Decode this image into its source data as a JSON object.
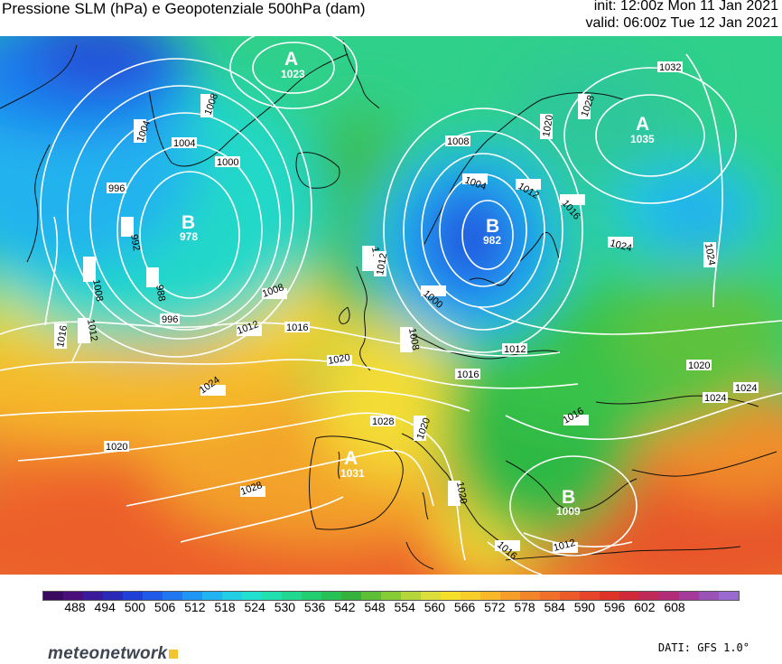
{
  "header": {
    "title": "Pressione SLM (hPa) e Geopotenziale 500hPa (dam)",
    "init": "init: 12:00z Mon 11 Jan 2021",
    "valid": "valid: 06:00z Tue 12 Jan 2021"
  },
  "map": {
    "pressure_centers": [
      {
        "letter": "A",
        "value": "1023"
      },
      {
        "letter": "A",
        "value": "1035"
      },
      {
        "letter": "B",
        "value": "978"
      },
      {
        "letter": "B",
        "value": "982"
      },
      {
        "letter": "A",
        "value": "1031"
      },
      {
        "letter": "B",
        "value": "1009"
      }
    ],
    "isobar_labels": [
      "1032",
      "1008",
      "1004",
      "1004",
      "1000",
      "996",
      "992",
      "988",
      "996",
      "1008",
      "1012",
      "1016",
      "1008",
      "1016",
      "1012",
      "1020",
      "1024",
      "1020",
      "1028",
      "1016",
      "1012",
      "1008",
      "1004",
      "1012",
      "1020",
      "1028",
      "1016",
      "1024",
      "1024",
      "1020",
      "1024",
      "1016",
      "1020",
      "1012",
      "1016",
      "1028",
      "1024",
      "1020",
      "1016",
      "1012",
      "1008",
      "1000",
      "1012"
    ]
  },
  "colorbar": {
    "ticks": [
      "488",
      "494",
      "500",
      "506",
      "512",
      "518",
      "524",
      "530",
      "536",
      "542",
      "548",
      "554",
      "560",
      "566",
      "572",
      "578",
      "584",
      "590",
      "596",
      "602",
      "608"
    ],
    "colors": [
      "#3a0a5e",
      "#4a0f7a",
      "#3a1a9a",
      "#2a2ab8",
      "#1f3fd6",
      "#1f5ae8",
      "#1f77f2",
      "#1f95f5",
      "#22b3f2",
      "#22cde6",
      "#22e0d0",
      "#22dfb0",
      "#22d890",
      "#22cf70",
      "#27c255",
      "#35b23e",
      "#5cbf36",
      "#86cc36",
      "#b4d63a",
      "#dcde3c",
      "#f5df2a",
      "#f8cf2a",
      "#f8b82a",
      "#f59e2a",
      "#f2852a",
      "#f0702a",
      "#ec5a2a",
      "#e6452a",
      "#de3428",
      "#d02a38",
      "#c02a58",
      "#b22a78",
      "#a53a9a",
      "#9a52b6",
      "#9a6ad0"
    ],
    "scale_min": 488,
    "scale_max": 608,
    "units": "dam"
  },
  "footer": {
    "logo": "meteonetwork",
    "source": "DATI: GFS 1.0°"
  }
}
